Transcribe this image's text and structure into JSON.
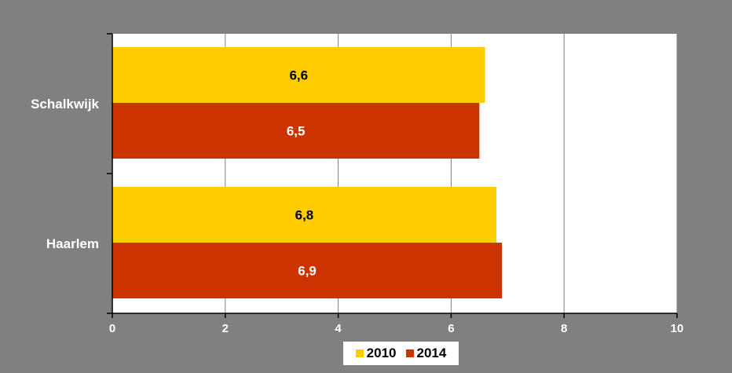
{
  "chart_data": {
    "type": "bar",
    "orientation": "horizontal",
    "categories": [
      "Schalkwijk",
      "Haarlem"
    ],
    "series": [
      {
        "name": "2010",
        "values": [
          6.6,
          6.8
        ],
        "labels": [
          "6,6",
          "6,8"
        ],
        "color": "#FFCC00",
        "label_color": "#000000"
      },
      {
        "name": "2014",
        "values": [
          6.5,
          6.9
        ],
        "labels": [
          "6,5",
          "6,9"
        ],
        "color": "#CC3300",
        "label_color": "#FFFFFF"
      }
    ],
    "xlim": [
      0,
      10
    ],
    "xticks": [
      0,
      2,
      4,
      6,
      8,
      10
    ],
    "xtick_labels": [
      "0",
      "2",
      "4",
      "6",
      "8",
      "10"
    ],
    "title": "",
    "xlabel": "",
    "ylabel": "",
    "grid": true,
    "legend_position": "bottom",
    "colors": {
      "background": "#808080",
      "plot_area": "#FFFFFF",
      "grid": "#808080",
      "axis": "#000000",
      "text": "#FFFFFF"
    }
  }
}
